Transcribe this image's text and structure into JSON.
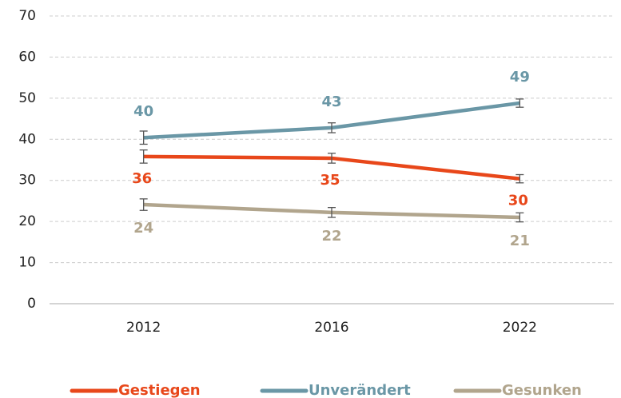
{
  "chart_data": {
    "type": "line",
    "categories": [
      "2012",
      "2016",
      "2022"
    ],
    "series": [
      {
        "name": "Gestiegen",
        "color": "#e8471a",
        "values": [
          35.8,
          35.4,
          30.4
        ],
        "value_labels": [
          "36",
          "35",
          "30"
        ],
        "errors": [
          1.6,
          1.2,
          1.0
        ]
      },
      {
        "name": "Unverändert",
        "color": "#6a97a6",
        "values": [
          40.4,
          42.8,
          48.8
        ],
        "value_labels": [
          "40",
          "43",
          "49"
        ],
        "errors": [
          1.6,
          1.2,
          1.0
        ]
      },
      {
        "name": "Gesunken",
        "color": "#b1a58d",
        "values": [
          24.1,
          22.2,
          21.0
        ],
        "value_labels": [
          "24",
          "22",
          "21"
        ],
        "errors": [
          1.4,
          1.2,
          1.1
        ]
      }
    ],
    "ylim": [
      0,
      70
    ],
    "yticks": [
      0,
      10,
      20,
      30,
      40,
      50,
      60,
      70
    ],
    "grid": true
  }
}
